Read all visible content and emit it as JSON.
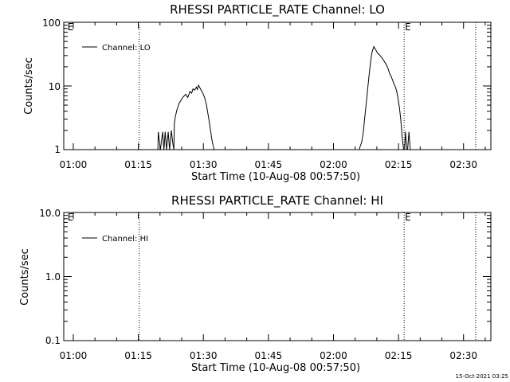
{
  "footer": {
    "timestamp": "15-Oct-2021 03:25"
  },
  "chart_data": [
    {
      "type": "line",
      "title": "RHESSI PARTICLE_RATE Channel: LO",
      "xlabel": "Start Time (10-Aug-08 00:57:50)",
      "ylabel": "Counts/sec",
      "yscale": "log",
      "ylim": [
        1,
        100
      ],
      "yticks": [
        "1",
        "10",
        "100"
      ],
      "xlim_minutes": [
        57.8,
        156.3
      ],
      "xticks": [
        "01:00",
        "01:15",
        "01:30",
        "01:45",
        "02:00",
        "02:15",
        "02:30"
      ],
      "legend": {
        "entry": "Channel: LO",
        "placement": "top-left"
      },
      "markers": [
        {
          "label": "E",
          "x_minutes": 58.5
        },
        {
          "label": "E",
          "x_minutes": 136.3
        }
      ],
      "vlines_minutes": [
        75.2,
        136.3,
        152.8
      ],
      "grid": false,
      "series": [
        {
          "x_minutes": [
            79.5,
            79.6,
            80.1,
            80.6,
            80.9,
            81.2,
            81.5,
            81.9,
            82.2,
            82.6,
            83.0,
            83.2,
            83.3,
            83.5,
            83.9,
            84.4,
            85.0,
            85.4,
            85.9,
            86.4,
            86.9,
            87.3,
            87.6,
            88.0,
            88.4,
            88.6,
            88.9,
            89.2,
            89.6,
            89.9,
            90.3,
            90.7,
            91.0,
            91.3,
            91.7,
            91.9,
            92.2,
            92.5,
            92.7
          ],
          "values": [
            1,
            1.9,
            1,
            1.9,
            1,
            1.9,
            1,
            1.9,
            1,
            2.0,
            1.2,
            1,
            2.6,
            3.2,
            4.2,
            5.3,
            6.2,
            6.8,
            7.4,
            6.6,
            8.2,
            7.7,
            9.0,
            8.6,
            9.6,
            8.8,
            10.3,
            9.3,
            8.4,
            7.6,
            6.5,
            5.1,
            3.8,
            2.9,
            1.9,
            1.5,
            1.2,
            1,
            1
          ]
        },
        {
          "x_minutes": [
            125.9,
            126.5,
            126.9,
            127.2,
            127.6,
            127.9,
            128.3,
            128.6,
            128.9,
            129.3,
            129.6,
            129.9,
            130.2,
            130.6,
            130.9,
            131.3,
            131.6,
            131.9,
            132.3,
            132.6,
            132.9,
            133.3,
            133.6,
            133.9,
            134.3,
            134.6,
            134.9,
            135.2,
            135.5,
            135.7,
            135.9,
            136.2,
            136.4,
            136.6,
            136.9,
            137.1,
            137.4,
            137.7
          ],
          "values": [
            1,
            1.3,
            1.9,
            3.1,
            5.6,
            9.3,
            16.5,
            25.5,
            34.0,
            41.5,
            38.5,
            35.5,
            32.5,
            31.0,
            29.0,
            27.0,
            25.0,
            23.2,
            21.0,
            18.6,
            16.0,
            14.1,
            12.5,
            11.0,
            9.6,
            8.1,
            6.4,
            4.6,
            3.1,
            2.1,
            1.4,
            1,
            1,
            1.9,
            1,
            1,
            1.9,
            1
          ]
        }
      ]
    },
    {
      "type": "line",
      "title": "RHESSI PARTICLE_RATE Channel: HI",
      "xlabel": "Start Time (10-Aug-08 00:57:50)",
      "ylabel": "Counts/sec",
      "yscale": "log",
      "ylim": [
        0.1,
        10
      ],
      "yticks": [
        "0.1",
        "1.0",
        "10.0"
      ],
      "xlim_minutes": [
        57.8,
        156.3
      ],
      "xticks": [
        "01:00",
        "01:15",
        "01:30",
        "01:45",
        "02:00",
        "02:15",
        "02:30"
      ],
      "legend": {
        "entry": "Channel: HI",
        "placement": "top-left"
      },
      "markers": [
        {
          "label": "E",
          "x_minutes": 58.5
        },
        {
          "label": "E",
          "x_minutes": 136.3
        }
      ],
      "vlines_minutes": [
        75.2,
        136.3,
        152.8
      ],
      "grid": false,
      "series": []
    }
  ]
}
